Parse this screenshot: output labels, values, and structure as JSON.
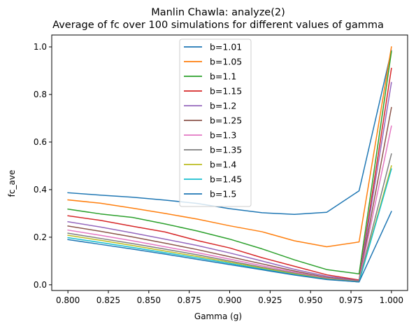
{
  "chart_data": {
    "type": "line",
    "title": "Manlin Chawla: analyze(2)",
    "subtitle": "Average of fc over 100 simulations for different values of gamma",
    "xlabel": "Gamma (g)",
    "ylabel": "fc_ave",
    "xlim": [
      0.79,
      1.01
    ],
    "ylim": [
      -0.024,
      1.05
    ],
    "xticks": [
      "0.800",
      "0.825",
      "0.850",
      "0.875",
      "0.900",
      "0.925",
      "0.950",
      "0.975",
      "1.000"
    ],
    "xtick_values": [
      0.8,
      0.825,
      0.85,
      0.875,
      0.9,
      0.925,
      0.95,
      0.975,
      1.0
    ],
    "yticks": [
      "0.0",
      "0.2",
      "0.4",
      "0.6",
      "0.8",
      "1.0"
    ],
    "ytick_values": [
      0.0,
      0.2,
      0.4,
      0.6,
      0.8,
      1.0
    ],
    "grid": false,
    "legend_position": "top-center",
    "x": [
      0.8,
      0.82,
      0.84,
      0.86,
      0.88,
      0.9,
      0.92,
      0.94,
      0.96,
      0.98,
      1.0
    ],
    "series": [
      {
        "name": "b=1.01",
        "color": "#1f77b4",
        "values": [
          0.387,
          0.377,
          0.368,
          0.356,
          0.342,
          0.32,
          0.303,
          0.296,
          0.305,
          0.395,
          0.985
        ]
      },
      {
        "name": "b=1.05",
        "color": "#ff7f0e",
        "values": [
          0.357,
          0.343,
          0.322,
          0.3,
          0.276,
          0.248,
          0.223,
          0.185,
          0.16,
          0.18,
          1.0
        ]
      },
      {
        "name": "b=1.1",
        "color": "#2ca02c",
        "values": [
          0.318,
          0.298,
          0.283,
          0.256,
          0.226,
          0.192,
          0.151,
          0.105,
          0.064,
          0.046,
          0.98
        ]
      },
      {
        "name": "b=1.15",
        "color": "#d62728",
        "values": [
          0.29,
          0.271,
          0.246,
          0.222,
          0.186,
          0.155,
          0.114,
          0.078,
          0.042,
          0.02,
          0.91
        ]
      },
      {
        "name": "b=1.2",
        "color": "#9467bd",
        "values": [
          0.265,
          0.243,
          0.218,
          0.192,
          0.165,
          0.134,
          0.1,
          0.065,
          0.036,
          0.017,
          0.85
        ]
      },
      {
        "name": "b=1.25",
        "color": "#8c564b",
        "values": [
          0.247,
          0.225,
          0.201,
          0.175,
          0.148,
          0.118,
          0.088,
          0.058,
          0.031,
          0.016,
          0.745
        ]
      },
      {
        "name": "b=1.3",
        "color": "#e377c2",
        "values": [
          0.23,
          0.208,
          0.185,
          0.16,
          0.135,
          0.108,
          0.08,
          0.053,
          0.028,
          0.015,
          0.667
        ]
      },
      {
        "name": "b=1.35",
        "color": "#7f7f7f",
        "values": [
          0.217,
          0.195,
          0.173,
          0.15,
          0.126,
          0.1,
          0.074,
          0.049,
          0.026,
          0.014,
          0.55
        ]
      },
      {
        "name": "b=1.4",
        "color": "#bcbd22",
        "values": [
          0.208,
          0.187,
          0.165,
          0.142,
          0.119,
          0.095,
          0.07,
          0.046,
          0.025,
          0.013,
          0.5
        ]
      },
      {
        "name": "b=1.45",
        "color": "#17becf",
        "values": [
          0.198,
          0.178,
          0.157,
          0.135,
          0.113,
          0.09,
          0.066,
          0.043,
          0.023,
          0.012,
          0.487
        ]
      },
      {
        "name": "b=1.5",
        "color": "#1f77b4",
        "values": [
          0.19,
          0.17,
          0.15,
          0.129,
          0.107,
          0.085,
          0.063,
          0.041,
          0.022,
          0.012,
          0.308
        ]
      }
    ]
  }
}
